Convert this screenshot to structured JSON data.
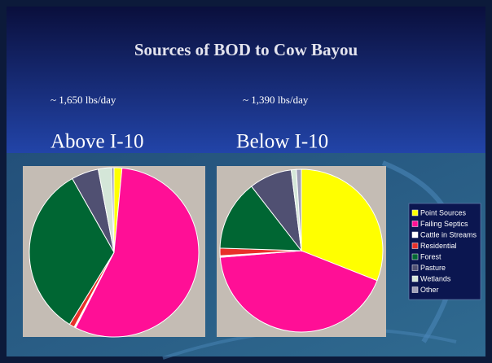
{
  "slide": {
    "title": "Sources of BOD to Cow Bayou"
  },
  "legend": "right",
  "chart_data": [
    {
      "type": "pie",
      "subtitle": "~ 1,650 lbs/day",
      "title": "Above I-10",
      "categories": [
        "Point Sources",
        "Failing Septics",
        "Cattle in Streams",
        "Residential",
        "Forest",
        "Pasture",
        "Wetlands",
        "Other"
      ],
      "values": [
        1.5,
        56,
        0.3,
        1,
        33,
        5.2,
        2.5,
        0.5
      ],
      "colors": [
        "#ffff00",
        "#ff0f96",
        "#ffffff",
        "#e8302a",
        "#006633",
        "#505072",
        "#d4e6d8",
        "#a0a0b8"
      ]
    },
    {
      "type": "pie",
      "subtitle": "~ 1,390 lbs/day",
      "title": "Below I-10",
      "categories": [
        "Point Sources",
        "Failing Septics",
        "Cattle in Streams",
        "Residential",
        "Forest",
        "Pasture",
        "Wetlands",
        "Other"
      ],
      "values": [
        31,
        42.7,
        0.3,
        1.5,
        14,
        8.5,
        1,
        1
      ],
      "colors": [
        "#ffff00",
        "#ff0f96",
        "#ffffff",
        "#e8302a",
        "#006633",
        "#505072",
        "#d4e6d8",
        "#a0a0b8"
      ]
    }
  ]
}
